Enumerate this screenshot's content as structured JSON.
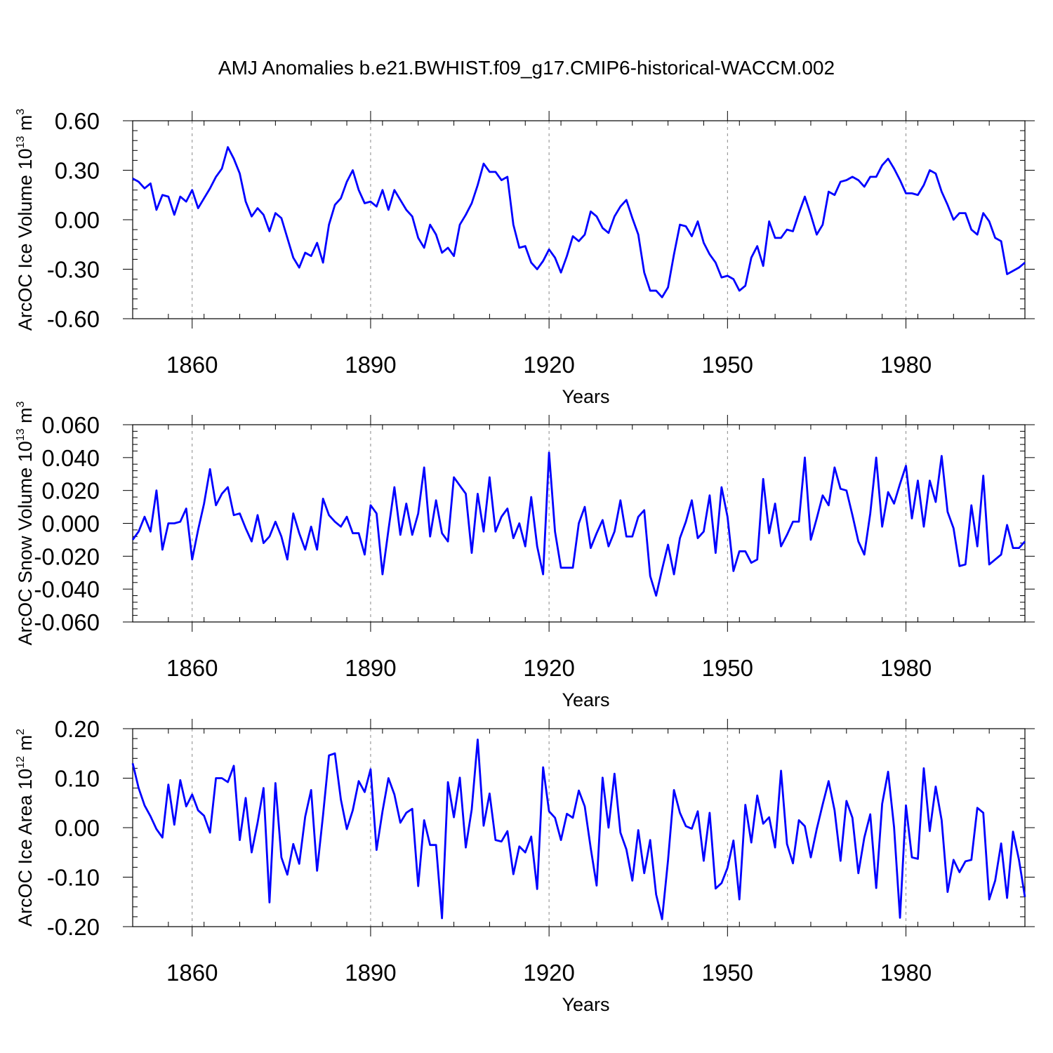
{
  "figure": {
    "title": "AMJ Anomalies b.e21.BWHIST.f09_g17.CMIP6-historical-WACCM.002"
  },
  "chart_data": [
    {
      "type": "line",
      "id": "ice-volume",
      "xlabel": "Years",
      "ylabel": {
        "text": "ArcOC Ice Volume 10",
        "sup": "13",
        "unit": " m",
        "unit_sup": "3"
      },
      "xlim": [
        1850,
        2000
      ],
      "ylim": [
        -0.6,
        0.6
      ],
      "xticks": [
        1860,
        1890,
        1920,
        1950,
        1980
      ],
      "yticks": [
        -0.6,
        -0.3,
        0.0,
        0.3,
        0.6
      ],
      "ytick_labels": [
        "-0.60",
        "-0.30",
        "0.00",
        "0.30",
        "0.60"
      ],
      "series_color": "#0000ff",
      "x_start": 1850,
      "values": [
        0.25,
        0.23,
        0.19,
        0.22,
        0.06,
        0.15,
        0.14,
        0.03,
        0.14,
        0.11,
        0.18,
        0.07,
        0.13,
        0.19,
        0.26,
        0.31,
        0.44,
        0.37,
        0.28,
        0.11,
        0.02,
        0.07,
        0.03,
        -0.07,
        0.04,
        0.01,
        -0.11,
        -0.23,
        -0.29,
        -0.2,
        -0.22,
        -0.14,
        -0.26,
        -0.03,
        0.09,
        0.13,
        0.23,
        0.3,
        0.18,
        0.1,
        0.11,
        0.08,
        0.18,
        0.06,
        0.18,
        0.12,
        0.06,
        0.02,
        -0.11,
        -0.17,
        -0.03,
        -0.09,
        -0.2,
        -0.17,
        -0.22,
        -0.03,
        0.03,
        0.1,
        0.21,
        0.34,
        0.29,
        0.29,
        0.24,
        0.26,
        -0.03,
        -0.17,
        -0.16,
        -0.26,
        -0.3,
        -0.25,
        -0.18,
        -0.23,
        -0.32,
        -0.22,
        -0.1,
        -0.13,
        -0.09,
        0.05,
        0.02,
        -0.05,
        -0.08,
        0.02,
        0.08,
        0.12,
        0.01,
        -0.09,
        -0.32,
        -0.43,
        -0.43,
        -0.47,
        -0.41,
        -0.21,
        -0.03,
        -0.04,
        -0.1,
        -0.01,
        -0.14,
        -0.21,
        -0.26,
        -0.35,
        -0.34,
        -0.36,
        -0.43,
        -0.4,
        -0.23,
        -0.16,
        -0.28,
        -0.01,
        -0.11,
        -0.11,
        -0.06,
        -0.07,
        0.04,
        0.14,
        0.03,
        -0.09,
        -0.03,
        0.17,
        0.15,
        0.23,
        0.24,
        0.26,
        0.24,
        0.2,
        0.26,
        0.26,
        0.33,
        0.37,
        0.31,
        0.24,
        0.16,
        0.16,
        0.15,
        0.21,
        0.3,
        0.28,
        0.17,
        0.09,
        0.0,
        0.04,
        0.04,
        -0.06,
        -0.09,
        0.04,
        -0.01,
        -0.11,
        -0.13,
        -0.33,
        -0.31,
        -0.29,
        -0.26
      ]
    },
    {
      "type": "line",
      "id": "snow-volume",
      "xlabel": "Years",
      "ylabel": {
        "text": "ArcOC Snow Volume 10",
        "sup": "13",
        "unit": " m",
        "unit_sup": "3"
      },
      "xlim": [
        1850,
        2000
      ],
      "ylim": [
        -0.06,
        0.06
      ],
      "xticks": [
        1860,
        1890,
        1920,
        1950,
        1980
      ],
      "yticks": [
        -0.06,
        -0.04,
        -0.02,
        0.0,
        0.02,
        0.04,
        0.06
      ],
      "ytick_labels": [
        "-0.060",
        "-0.040",
        "-0.020",
        "0.000",
        "0.020",
        "0.040",
        "0.060"
      ],
      "series_color": "#0000ff",
      "x_start": 1850,
      "values": [
        -0.01,
        -0.005,
        0.004,
        -0.005,
        0.02,
        -0.016,
        0.0,
        0.0,
        0.001,
        0.009,
        -0.022,
        -0.004,
        0.012,
        0.033,
        0.011,
        0.018,
        0.022,
        0.005,
        0.006,
        -0.003,
        -0.011,
        0.005,
        -0.012,
        -0.008,
        0.001,
        -0.008,
        -0.022,
        0.006,
        -0.006,
        -0.016,
        -0.002,
        -0.016,
        0.015,
        0.005,
        0.001,
        -0.002,
        0.004,
        -0.006,
        -0.006,
        -0.019,
        0.011,
        0.006,
        -0.031,
        -0.004,
        0.022,
        -0.007,
        0.012,
        -0.007,
        0.006,
        0.034,
        -0.008,
        0.014,
        -0.006,
        -0.011,
        0.028,
        0.023,
        0.018,
        -0.018,
        0.018,
        -0.005,
        0.028,
        -0.005,
        0.004,
        0.009,
        -0.009,
        0.0,
        -0.014,
        0.016,
        -0.014,
        -0.031,
        0.043,
        -0.005,
        -0.027,
        -0.027,
        -0.027,
        0.0,
        0.01,
        -0.015,
        -0.006,
        0.002,
        -0.014,
        -0.005,
        0.014,
        -0.008,
        -0.008,
        0.004,
        0.008,
        -0.032,
        -0.044,
        -0.028,
        -0.013,
        -0.031,
        -0.009,
        0.001,
        0.014,
        -0.009,
        -0.005,
        0.017,
        -0.018,
        0.022,
        0.004,
        -0.029,
        -0.017,
        -0.017,
        -0.024,
        -0.022,
        0.027,
        -0.006,
        0.012,
        -0.014,
        -0.007,
        0.001,
        0.001,
        0.04,
        -0.01,
        0.003,
        0.017,
        0.011,
        0.034,
        0.021,
        0.02,
        0.005,
        -0.011,
        -0.019,
        0.006,
        0.04,
        -0.002,
        0.019,
        0.012,
        0.024,
        0.035,
        0.003,
        0.026,
        -0.002,
        0.026,
        0.013,
        0.041,
        0.007,
        -0.003,
        -0.026,
        -0.025,
        0.011,
        -0.014,
        0.029,
        -0.025,
        -0.022,
        -0.019,
        -0.001,
        -0.015,
        -0.015,
        -0.011
      ]
    },
    {
      "type": "line",
      "id": "ice-area",
      "xlabel": "Years",
      "ylabel": {
        "text": "ArcOC Ice Area 10",
        "sup": "12",
        "unit": " m",
        "unit_sup": "2"
      },
      "xlim": [
        1850,
        2000
      ],
      "ylim": [
        -0.2,
        0.2
      ],
      "xticks": [
        1860,
        1890,
        1920,
        1950,
        1980
      ],
      "yticks": [
        -0.2,
        -0.1,
        0.0,
        0.1,
        0.2
      ],
      "ytick_labels": [
        "-0.20",
        "-0.10",
        "0.00",
        "0.10",
        "0.20"
      ],
      "series_color": "#0000ff",
      "x_start": 1850,
      "values": [
        0.13,
        0.08,
        0.045,
        0.023,
        -0.003,
        -0.02,
        0.087,
        0.006,
        0.096,
        0.043,
        0.067,
        0.035,
        0.024,
        -0.01,
        0.1,
        0.1,
        0.092,
        0.125,
        -0.025,
        0.06,
        -0.05,
        0.01,
        0.08,
        -0.151,
        0.09,
        -0.06,
        -0.095,
        -0.033,
        -0.073,
        0.022,
        0.076,
        -0.087,
        0.025,
        0.146,
        0.15,
        0.057,
        -0.003,
        0.035,
        0.094,
        0.072,
        0.118,
        -0.045,
        0.033,
        0.1,
        0.067,
        0.01,
        0.03,
        0.038,
        -0.118,
        0.015,
        -0.035,
        -0.035,
        -0.183,
        0.092,
        0.021,
        0.101,
        -0.04,
        0.037,
        0.178,
        0.004,
        0.069,
        -0.025,
        -0.028,
        -0.007,
        -0.094,
        -0.038,
        -0.05,
        -0.018,
        -0.124,
        0.122,
        0.033,
        0.02,
        -0.025,
        0.028,
        0.02,
        0.075,
        0.043,
        -0.041,
        -0.117,
        0.101,
        0.0,
        0.109,
        -0.01,
        -0.044,
        -0.107,
        -0.005,
        -0.092,
        -0.025,
        -0.135,
        -0.185,
        -0.066,
        0.076,
        0.03,
        0.003,
        -0.002,
        0.033,
        -0.067,
        0.03,
        -0.123,
        -0.112,
        -0.081,
        -0.026,
        -0.145,
        0.046,
        -0.03,
        0.065,
        0.008,
        0.021,
        -0.04,
        0.115,
        -0.033,
        -0.072,
        0.015,
        0.003,
        -0.06,
        -0.003,
        0.047,
        0.094,
        0.035,
        -0.067,
        0.054,
        0.02,
        -0.092,
        -0.02,
        0.027,
        -0.122,
        0.048,
        0.113,
        0.001,
        -0.182,
        0.045,
        -0.06,
        -0.063,
        0.12,
        -0.007,
        0.083,
        0.015,
        -0.13,
        -0.065,
        -0.09,
        -0.068,
        -0.065,
        0.04,
        0.03,
        -0.145,
        -0.107,
        -0.032,
        -0.142,
        -0.008,
        -0.065,
        -0.14
      ]
    }
  ]
}
